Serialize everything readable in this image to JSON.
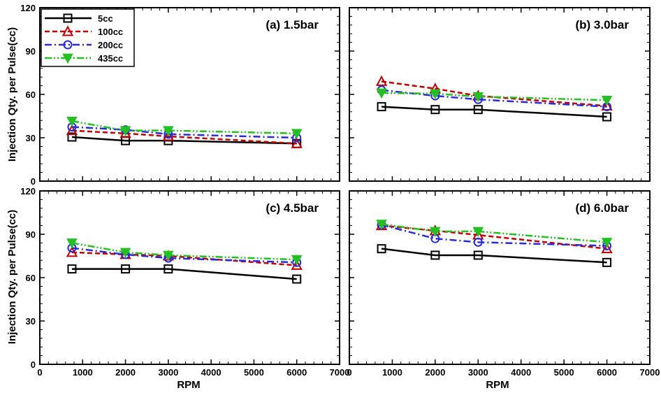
{
  "page": {
    "ylabel_left_top": "Injection Qty. per Pulse(cc)",
    "ylabel_left_bottom": "Injection Qty. per Pulse(cc)",
    "xlabel_left": "RPM",
    "xlabel_right": "RPM"
  },
  "legend": {
    "placement": "top-left of panel (a)",
    "entries": [
      "5cc",
      "100cc",
      "200cc",
      "435cc"
    ]
  },
  "series_styles": [
    {
      "name": "5cc",
      "color": "#000000",
      "marker": "square",
      "dash": "solid"
    },
    {
      "name": "100cc",
      "color": "#c00000",
      "marker": "triangle-up",
      "dash": "dashed"
    },
    {
      "name": "200cc",
      "color": "#2a2ad8",
      "marker": "circle",
      "dash": "dash-dot"
    },
    {
      "name": "435cc",
      "color": "#22c022",
      "marker": "triangle-down",
      "dash": "dash-dot-dot"
    }
  ],
  "chart_data": [
    {
      "type": "line",
      "title": "(a) 1.5bar",
      "xlabel": "",
      "ylabel": "Injection Qty. per Pulse(cc)",
      "xlim": [
        0,
        7000
      ],
      "ylim": [
        0,
        120
      ],
      "xticks": [
        0,
        1000,
        2000,
        3000,
        4000,
        5000,
        6000,
        7000
      ],
      "yticks": [
        0,
        30,
        60,
        90,
        120
      ],
      "x": [
        750,
        2000,
        3000,
        6000
      ],
      "series": [
        {
          "name": "5cc",
          "values": [
            30.5,
            28,
            28,
            26
          ]
        },
        {
          "name": "100cc",
          "values": [
            35,
            33,
            31,
            26
          ]
        },
        {
          "name": "200cc",
          "values": [
            37.5,
            35.5,
            32.5,
            30
          ]
        },
        {
          "name": "435cc",
          "values": [
            41.5,
            35,
            35,
            33
          ]
        }
      ]
    },
    {
      "type": "line",
      "title": "(b) 3.0bar",
      "xlabel": "",
      "ylabel": "",
      "xlim": [
        0,
        7000
      ],
      "ylim": [
        0,
        120
      ],
      "xticks": [
        0,
        1000,
        2000,
        3000,
        4000,
        5000,
        6000,
        7000
      ],
      "yticks": [
        0,
        30,
        60,
        90,
        120
      ],
      "x": [
        750,
        2000,
        3000,
        6000
      ],
      "series": [
        {
          "name": "5cc",
          "values": [
            51.5,
            49.5,
            49.5,
            44.5
          ]
        },
        {
          "name": "100cc",
          "values": [
            69,
            64,
            59,
            52
          ]
        },
        {
          "name": "200cc",
          "values": [
            63,
            59,
            56.5,
            51.5
          ]
        },
        {
          "name": "435cc",
          "values": [
            61,
            60.5,
            58.5,
            56
          ]
        }
      ]
    },
    {
      "type": "line",
      "title": "(c) 4.5bar",
      "xlabel": "RPM",
      "ylabel": "Injection Qty. per Pulse(cc)",
      "xlim": [
        0,
        7000
      ],
      "ylim": [
        0,
        120
      ],
      "xticks": [
        0,
        1000,
        2000,
        3000,
        4000,
        5000,
        6000,
        7000
      ],
      "yticks": [
        0,
        30,
        60,
        90,
        120
      ],
      "x": [
        750,
        2000,
        3000,
        6000
      ],
      "series": [
        {
          "name": "5cc",
          "values": [
            66,
            66,
            66,
            59
          ]
        },
        {
          "name": "100cc",
          "values": [
            77.5,
            76,
            75,
            68.5
          ]
        },
        {
          "name": "200cc",
          "values": [
            80.5,
            76,
            73.5,
            70.5
          ]
        },
        {
          "name": "435cc",
          "values": [
            84,
            77.5,
            75.5,
            72.5
          ]
        }
      ]
    },
    {
      "type": "line",
      "title": "(d) 6.0bar",
      "xlabel": "RPM",
      "ylabel": "",
      "xlim": [
        0,
        7000
      ],
      "ylim": [
        0,
        120
      ],
      "xticks": [
        0,
        1000,
        2000,
        3000,
        4000,
        5000,
        6000,
        7000
      ],
      "yticks": [
        0,
        30,
        60,
        90,
        120
      ],
      "x": [
        750,
        2000,
        3000,
        6000
      ],
      "series": [
        {
          "name": "5cc",
          "values": [
            80,
            75.5,
            75.5,
            70.5
          ]
        },
        {
          "name": "100cc",
          "values": [
            96,
            92.5,
            89.5,
            80
          ]
        },
        {
          "name": "200cc",
          "values": [
            96.5,
            87,
            84.5,
            82
          ]
        },
        {
          "name": "435cc",
          "values": [
            97,
            92,
            92,
            84.5
          ]
        }
      ]
    }
  ]
}
